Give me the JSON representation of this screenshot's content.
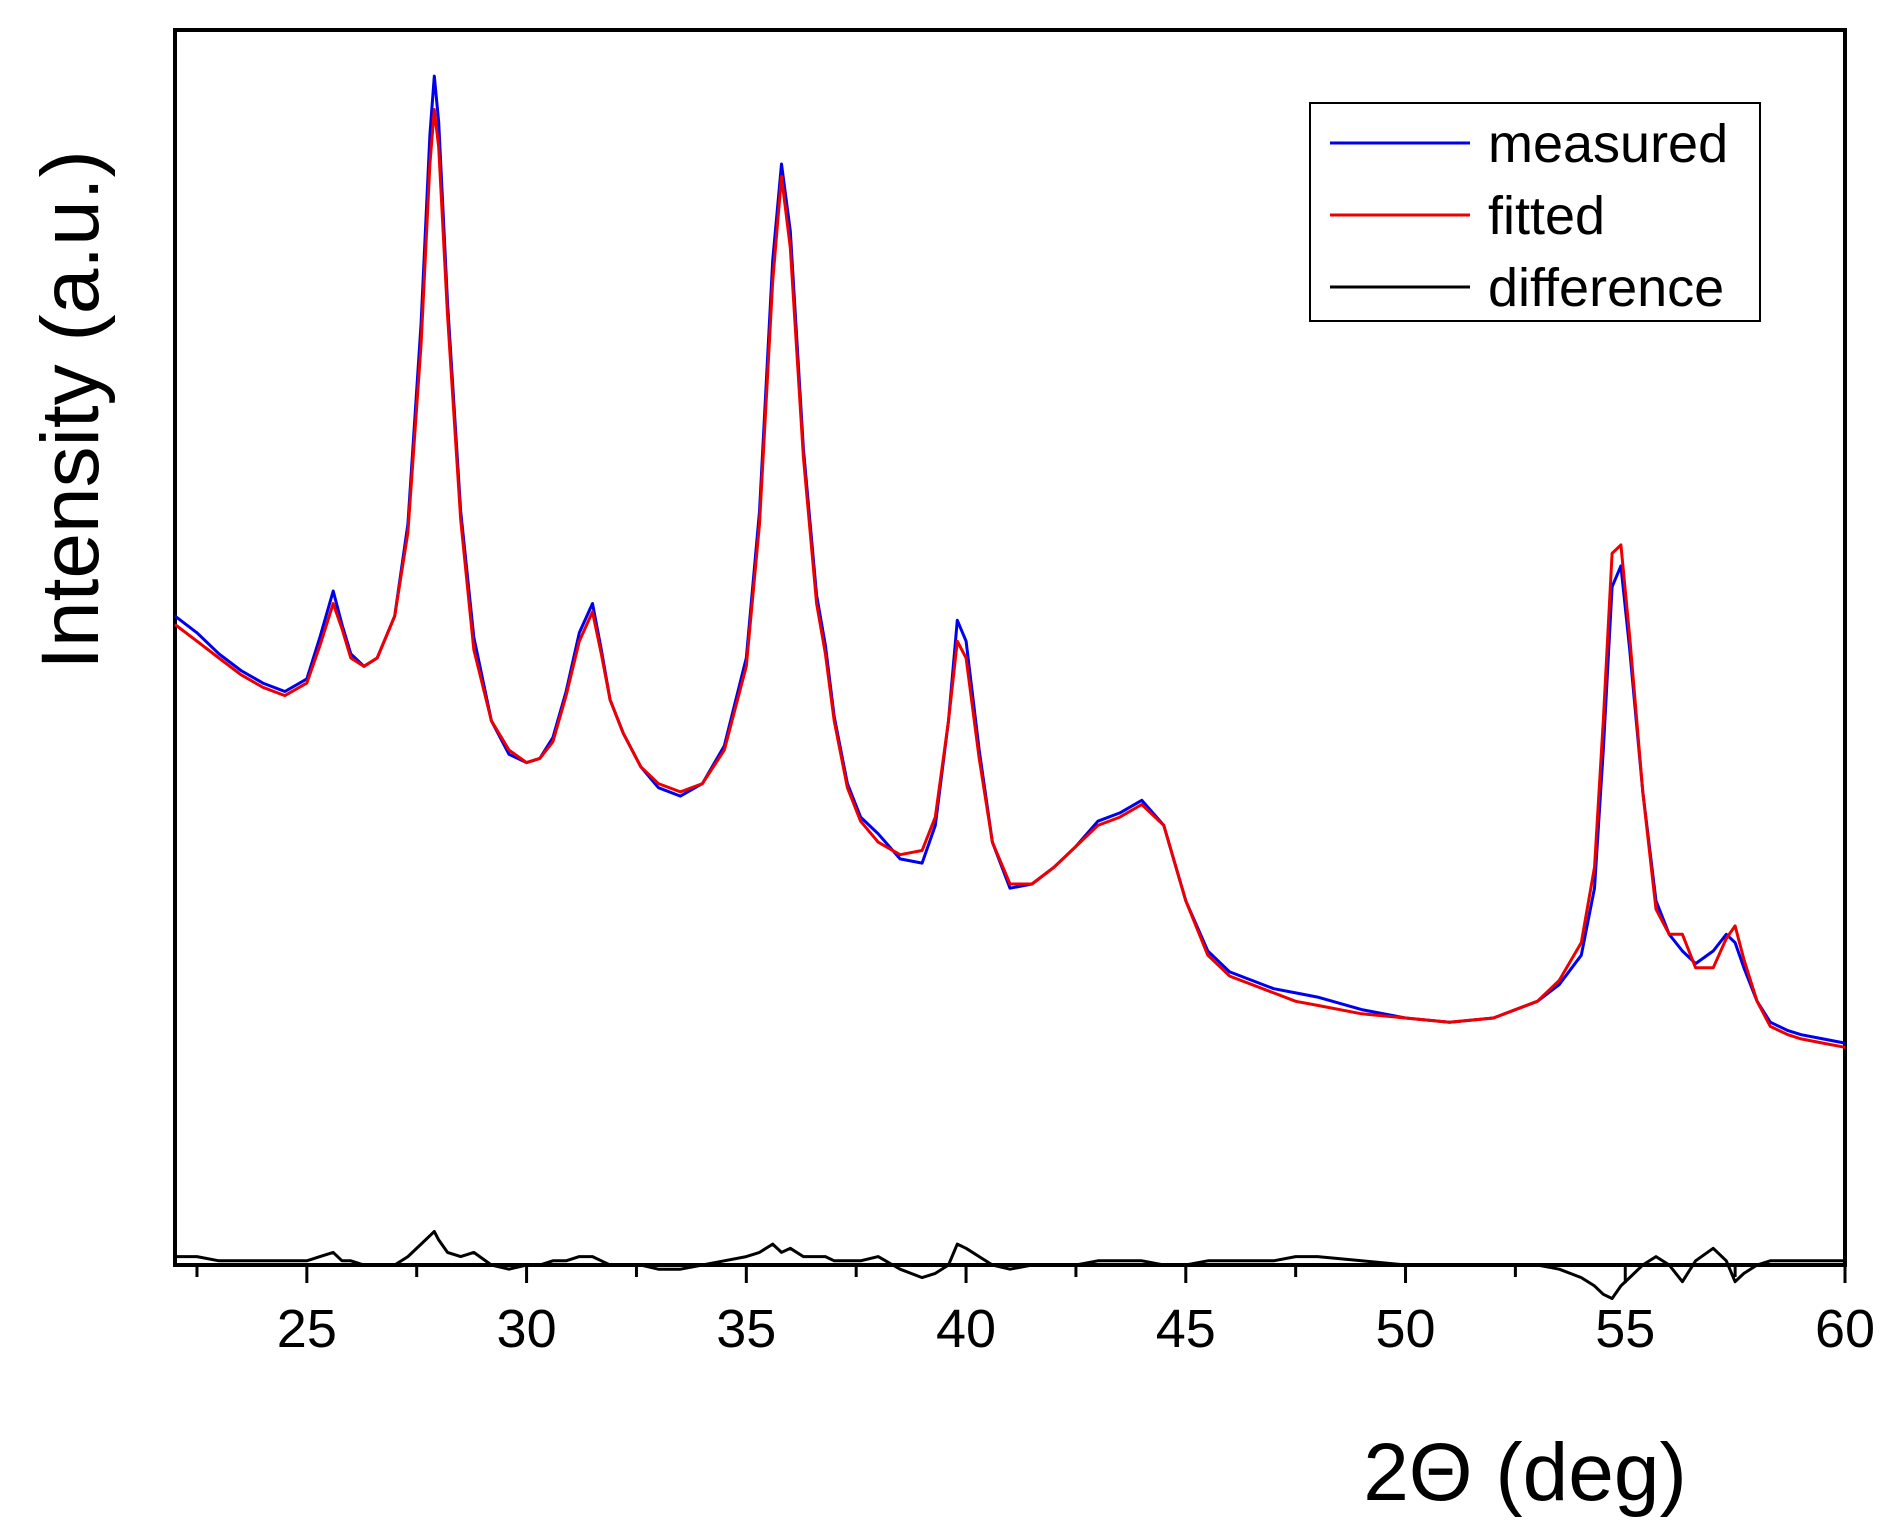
{
  "chart_data": {
    "type": "line",
    "title": "",
    "xlabel": "2Θ (deg)",
    "ylabel": "Intensity (a.u.)",
    "xlim": [
      22,
      60
    ],
    "ylim": [
      -0.35,
      2.6
    ],
    "xticks_major": [
      25,
      30,
      35,
      40,
      45,
      50,
      55,
      60
    ],
    "xticks_minor": [
      22.5,
      27.5,
      32.5,
      37.5,
      42.5,
      47.5,
      52.5,
      57.5
    ],
    "yticks": [],
    "legend_position": "top-right",
    "grid": false,
    "colors": {
      "measured": "#0000ee",
      "fitted": "#ee0000",
      "difference": "#000000",
      "axes": "#000000"
    },
    "series": [
      {
        "name": "measured",
        "x": [
          22.0,
          22.5,
          23.0,
          23.5,
          24.0,
          24.5,
          25.0,
          25.3,
          25.6,
          25.8,
          26.0,
          26.3,
          26.6,
          27.0,
          27.3,
          27.6,
          27.8,
          27.9,
          28.0,
          28.2,
          28.5,
          28.8,
          29.2,
          29.6,
          30.0,
          30.3,
          30.6,
          30.9,
          31.2,
          31.5,
          31.7,
          31.9,
          32.2,
          32.6,
          33.0,
          33.5,
          34.0,
          34.5,
          35.0,
          35.3,
          35.6,
          35.8,
          36.0,
          36.3,
          36.6,
          36.8,
          37.0,
          37.3,
          37.6,
          38.0,
          38.5,
          39.0,
          39.3,
          39.6,
          39.8,
          40.0,
          40.3,
          40.6,
          41.0,
          41.5,
          42.0,
          42.5,
          43.0,
          43.5,
          44.0,
          44.5,
          45.0,
          45.5,
          46.0,
          47.0,
          47.5,
          48.0,
          49.0,
          50.0,
          51.0,
          52.0,
          53.0,
          53.5,
          54.0,
          54.3,
          54.5,
          54.7,
          54.9,
          55.1,
          55.4,
          55.7,
          56.0,
          56.3,
          56.6,
          57.0,
          57.3,
          57.5,
          57.7,
          58.0,
          58.3,
          58.7,
          59.0,
          59.5,
          60.0
        ],
        "values": [
          1.2,
          1.16,
          1.11,
          1.07,
          1.04,
          1.02,
          1.05,
          1.15,
          1.26,
          1.18,
          1.11,
          1.08,
          1.1,
          1.2,
          1.42,
          1.9,
          2.35,
          2.49,
          2.38,
          1.95,
          1.45,
          1.15,
          0.95,
          0.87,
          0.85,
          0.86,
          0.91,
          1.02,
          1.16,
          1.23,
          1.12,
          1.0,
          0.92,
          0.84,
          0.79,
          0.77,
          0.8,
          0.89,
          1.1,
          1.45,
          2.05,
          2.28,
          2.12,
          1.6,
          1.25,
          1.13,
          0.96,
          0.8,
          0.72,
          0.68,
          0.62,
          0.61,
          0.7,
          0.95,
          1.19,
          1.14,
          0.88,
          0.66,
          0.55,
          0.56,
          0.6,
          0.65,
          0.71,
          0.73,
          0.76,
          0.7,
          0.52,
          0.4,
          0.35,
          0.31,
          0.3,
          0.29,
          0.26,
          0.24,
          0.23,
          0.24,
          0.28,
          0.32,
          0.39,
          0.55,
          0.88,
          1.27,
          1.32,
          1.12,
          0.78,
          0.52,
          0.44,
          0.4,
          0.37,
          0.4,
          0.44,
          0.42,
          0.36,
          0.28,
          0.23,
          0.21,
          0.2,
          0.19,
          0.18
        ]
      },
      {
        "name": "fitted",
        "x": [
          22.0,
          22.5,
          23.0,
          23.5,
          24.0,
          24.5,
          25.0,
          25.3,
          25.6,
          25.8,
          26.0,
          26.3,
          26.6,
          27.0,
          27.3,
          27.6,
          27.8,
          27.9,
          28.0,
          28.2,
          28.5,
          28.8,
          29.2,
          29.6,
          30.0,
          30.3,
          30.6,
          30.9,
          31.2,
          31.5,
          31.7,
          31.9,
          32.2,
          32.6,
          33.0,
          33.5,
          34.0,
          34.5,
          35.0,
          35.3,
          35.6,
          35.8,
          36.0,
          36.3,
          36.6,
          36.8,
          37.0,
          37.3,
          37.6,
          38.0,
          38.5,
          39.0,
          39.3,
          39.6,
          39.8,
          40.0,
          40.3,
          40.6,
          41.0,
          41.5,
          42.0,
          42.5,
          43.0,
          43.5,
          44.0,
          44.5,
          45.0,
          45.5,
          46.0,
          47.0,
          47.5,
          48.0,
          49.0,
          50.0,
          51.0,
          52.0,
          53.0,
          53.5,
          54.0,
          54.3,
          54.5,
          54.7,
          54.9,
          55.1,
          55.4,
          55.7,
          56.0,
          56.3,
          56.6,
          57.0,
          57.3,
          57.5,
          57.7,
          58.0,
          58.3,
          58.7,
          59.0,
          59.5,
          60.0
        ],
        "values": [
          1.18,
          1.14,
          1.1,
          1.06,
          1.03,
          1.01,
          1.04,
          1.13,
          1.23,
          1.17,
          1.1,
          1.08,
          1.1,
          1.2,
          1.4,
          1.85,
          2.28,
          2.41,
          2.32,
          1.92,
          1.43,
          1.12,
          0.95,
          0.88,
          0.85,
          0.86,
          0.9,
          1.01,
          1.14,
          1.21,
          1.11,
          1.0,
          0.92,
          0.84,
          0.8,
          0.78,
          0.8,
          0.88,
          1.08,
          1.42,
          2.0,
          2.25,
          2.08,
          1.58,
          1.23,
          1.11,
          0.95,
          0.79,
          0.71,
          0.66,
          0.63,
          0.64,
          0.72,
          0.95,
          1.14,
          1.1,
          0.86,
          0.66,
          0.56,
          0.56,
          0.6,
          0.65,
          0.7,
          0.72,
          0.75,
          0.7,
          0.52,
          0.39,
          0.34,
          0.3,
          0.28,
          0.27,
          0.25,
          0.24,
          0.23,
          0.24,
          0.28,
          0.33,
          0.42,
          0.6,
          0.95,
          1.35,
          1.37,
          1.15,
          0.78,
          0.5,
          0.44,
          0.44,
          0.36,
          0.36,
          0.43,
          0.46,
          0.38,
          0.28,
          0.22,
          0.2,
          0.19,
          0.18,
          0.17
        ]
      },
      {
        "name": "difference",
        "x": [
          22.0,
          22.5,
          23.0,
          23.5,
          24.0,
          24.5,
          25.0,
          25.3,
          25.6,
          25.8,
          26.0,
          26.3,
          26.6,
          27.0,
          27.3,
          27.6,
          27.8,
          27.9,
          28.0,
          28.2,
          28.5,
          28.8,
          29.2,
          29.6,
          30.0,
          30.3,
          30.6,
          30.9,
          31.2,
          31.5,
          31.7,
          31.9,
          32.2,
          32.6,
          33.0,
          33.5,
          34.0,
          34.5,
          35.0,
          35.3,
          35.6,
          35.8,
          36.0,
          36.3,
          36.6,
          36.8,
          37.0,
          37.3,
          37.6,
          38.0,
          38.5,
          39.0,
          39.3,
          39.6,
          39.8,
          40.0,
          40.3,
          40.6,
          41.0,
          41.5,
          42.0,
          42.5,
          43.0,
          43.5,
          44.0,
          44.5,
          45.0,
          45.5,
          46.0,
          47.0,
          47.5,
          48.0,
          49.0,
          50.0,
          51.0,
          52.0,
          53.0,
          53.5,
          54.0,
          54.3,
          54.5,
          54.7,
          54.9,
          55.1,
          55.4,
          55.7,
          56.0,
          56.3,
          56.6,
          57.0,
          57.3,
          57.5,
          57.7,
          58.0,
          58.3,
          58.7,
          59.0,
          59.5,
          60.0
        ],
        "values": [
          0.02,
          0.02,
          0.01,
          0.01,
          0.01,
          0.01,
          0.01,
          0.02,
          0.03,
          0.01,
          0.01,
          0.0,
          0.0,
          0.0,
          0.02,
          0.05,
          0.07,
          0.08,
          0.06,
          0.03,
          0.02,
          0.03,
          0.0,
          -0.01,
          0.0,
          0.0,
          0.01,
          0.01,
          0.02,
          0.02,
          0.01,
          0.0,
          0.0,
          0.0,
          -0.01,
          -0.01,
          0.0,
          0.01,
          0.02,
          0.03,
          0.05,
          0.03,
          0.04,
          0.02,
          0.02,
          0.02,
          0.01,
          0.01,
          0.01,
          0.02,
          -0.01,
          -0.03,
          -0.02,
          0.0,
          0.05,
          0.04,
          0.02,
          0.0,
          -0.01,
          0.0,
          0.0,
          0.0,
          0.01,
          0.01,
          0.01,
          0.0,
          0.0,
          0.01,
          0.01,
          0.01,
          0.02,
          0.02,
          0.01,
          0.0,
          0.0,
          0.0,
          0.0,
          -0.01,
          -0.03,
          -0.05,
          -0.07,
          -0.08,
          -0.05,
          -0.03,
          0.0,
          0.02,
          0.0,
          -0.04,
          0.01,
          0.04,
          0.01,
          -0.04,
          -0.02,
          0.0,
          0.01,
          0.01,
          0.01,
          0.01,
          0.01
        ],
        "offset": -0.35
      }
    ]
  }
}
